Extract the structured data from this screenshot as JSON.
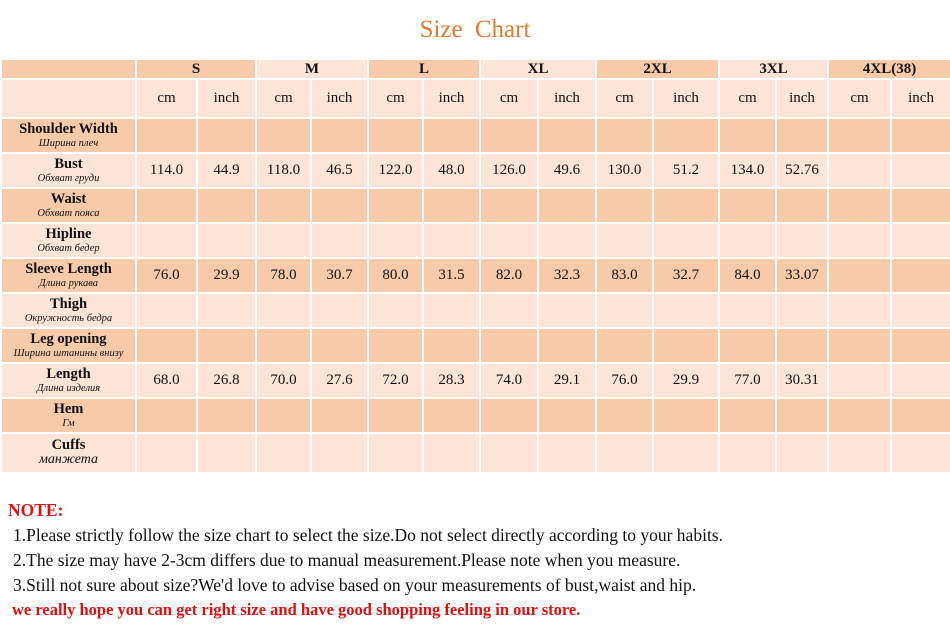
{
  "title": "Size  Chart",
  "sizes": [
    "S",
    "M",
    "L",
    "XL",
    "2XL",
    "3XL",
    "4XL(38)"
  ],
  "units": [
    "cm",
    "inch"
  ],
  "rows": [
    {
      "en": "Shoulder Width",
      "ru": "Ширина плеч",
      "values": [
        "",
        "",
        "",
        "",
        "",
        "",
        "",
        "",
        "",
        "",
        "",
        "",
        "",
        ""
      ]
    },
    {
      "en": "Bust",
      "ru": "Обхват груди",
      "values": [
        "114.0",
        "44.9",
        "118.0",
        "46.5",
        "122.0",
        "48.0",
        "126.0",
        "49.6",
        "130.0",
        "51.2",
        "134.0",
        "52.76",
        "",
        ""
      ]
    },
    {
      "en": "Waist",
      "ru": "Обхват пояса",
      "values": [
        "",
        "",
        "",
        "",
        "",
        "",
        "",
        "",
        "",
        "",
        "",
        "",
        "",
        ""
      ]
    },
    {
      "en": "Hipline",
      "ru": "Обхват бедер",
      "values": [
        "",
        "",
        "",
        "",
        "",
        "",
        "",
        "",
        "",
        "",
        "",
        "",
        "",
        ""
      ]
    },
    {
      "en": "Sleeve Length",
      "ru": "Длина рукава",
      "values": [
        "76.0",
        "29.9",
        "78.0",
        "30.7",
        "80.0",
        "31.5",
        "82.0",
        "32.3",
        "83.0",
        "32.7",
        "84.0",
        "33.07",
        "",
        ""
      ]
    },
    {
      "en": "Thigh",
      "ru": "Окружность бедра",
      "values": [
        "",
        "",
        "",
        "",
        "",
        "",
        "",
        "",
        "",
        "",
        "",
        "",
        "",
        ""
      ]
    },
    {
      "en": "Leg opening",
      "ru": "Ширина штанины внизу",
      "values": [
        "",
        "",
        "",
        "",
        "",
        "",
        "",
        "",
        "",
        "",
        "",
        "",
        "",
        ""
      ]
    },
    {
      "en": "Length",
      "ru": "Длина изделия",
      "values": [
        "68.0",
        "26.8",
        "70.0",
        "27.6",
        "72.0",
        "28.3",
        "74.0",
        "29.1",
        "76.0",
        "29.9",
        "77.0",
        "30.31",
        "",
        ""
      ]
    },
    {
      "en": "Hem",
      "ru": "Гм",
      "values": [
        "",
        "",
        "",
        "",
        "",
        "",
        "",
        "",
        "",
        "",
        "",
        "",
        "",
        ""
      ]
    },
    {
      "en": "Cuffs",
      "ru": "манжета",
      "values": [
        "",
        "",
        "",
        "",
        "",
        "",
        "",
        "",
        "",
        "",
        "",
        "",
        "",
        ""
      ]
    }
  ],
  "notes": {
    "heading": "NOTE:",
    "lines": [
      "1.Please strictly follow the size chart to select the size.Do not select directly according to your habits.",
      "2.The size may have 2-3cm differs due to manual measurement.Please note when you measure.",
      "3.Still not sure about size?We'd love to advise based on your measurements of bust,waist and hip."
    ],
    "closing": "we really hope you can get right size and have good shopping feeling in our store."
  },
  "colors": {
    "title": "#e27b2e",
    "cell_dark": "#f7caa9",
    "cell_light": "#fce4d6",
    "unit_text": "#e01010",
    "note_red": "#e01010"
  }
}
